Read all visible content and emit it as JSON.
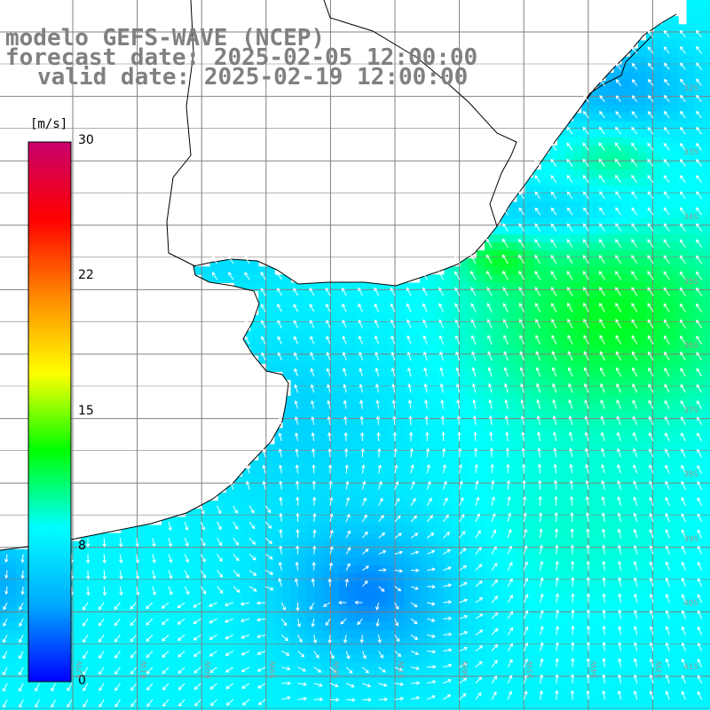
{
  "title": {
    "line1": "modelo GEFS-WAVE (NCEP)",
    "line2": "forecast date: 2025-02-05 12:00:00",
    "line3": "valid date: 2025-02-19 12:00:00"
  },
  "colorbar": {
    "units": "[m/s]",
    "min": 0,
    "max": 30,
    "ticks": [
      {
        "value": 30,
        "label": "30"
      },
      {
        "value": 22,
        "label": "22"
      },
      {
        "value": 15,
        "label": "15"
      },
      {
        "value": 8,
        "label": "8"
      },
      {
        "value": 0,
        "label": "0"
      }
    ],
    "colors": [
      "#0000ff",
      "#00aaff",
      "#00ffff",
      "#00ff00",
      "#ffff00",
      "#ff8800",
      "#ff0000",
      "#c8006e"
    ]
  },
  "map": {
    "land_color": "#ffffff",
    "grid_color": "#808080",
    "coast_color": "#000000",
    "vector_color": "#ffffff",
    "lat_labels": [
      "32S",
      "33S",
      "34S",
      "35S",
      "36S",
      "37S",
      "38S",
      "39S",
      "40S",
      "41S"
    ],
    "lon_labels": [
      "62W",
      "61W",
      "60W",
      "59W",
      "58W",
      "57W",
      "56W",
      "55W",
      "54W",
      "53W"
    ]
  }
}
